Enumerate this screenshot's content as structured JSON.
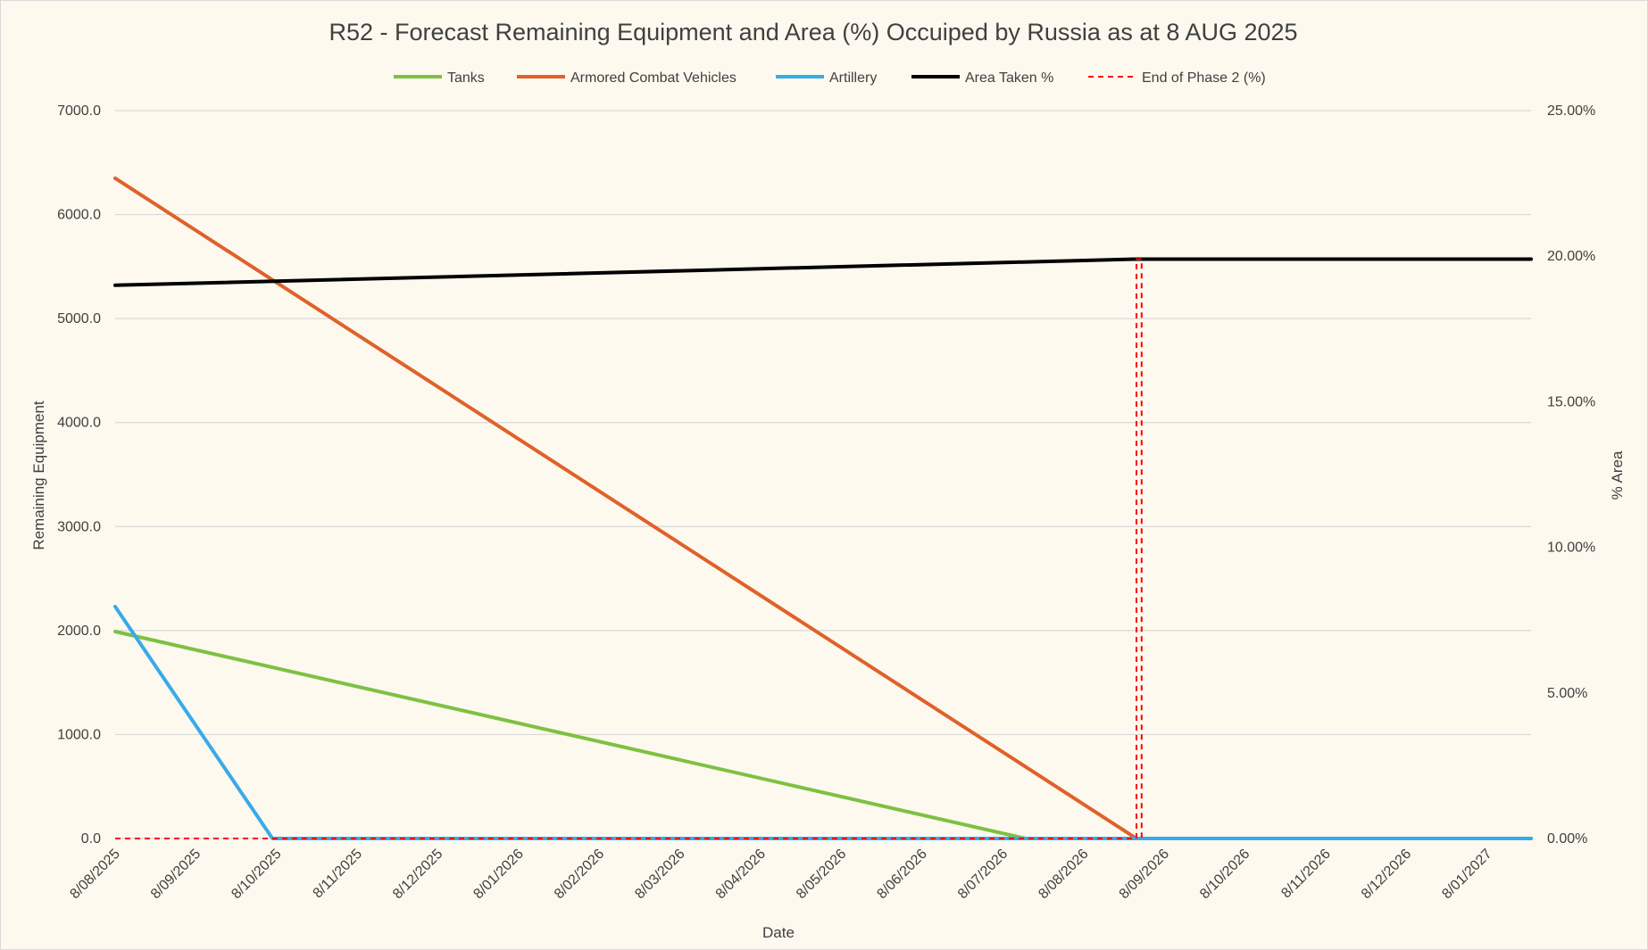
{
  "chart_data": {
    "type": "line",
    "title": "R52 - Forecast Remaining Equipment and Area (%) Occuiped by Russia as at 8 AUG 2025",
    "xlabel": "Date",
    "ylabel": "Remaining Equipment",
    "y2label": "% Area",
    "x_tick_labels": [
      "8/08/2025",
      "8/09/2025",
      "8/10/2025",
      "8/11/2025",
      "8/12/2025",
      "8/01/2026",
      "8/02/2026",
      "8/03/2026",
      "8/04/2026",
      "8/05/2026",
      "8/06/2026",
      "8/07/2026",
      "8/08/2026",
      "8/09/2026",
      "8/10/2026",
      "8/11/2026",
      "8/12/2026",
      "8/01/2027"
    ],
    "x_range": [
      "2025-08-08",
      "2027-02-08"
    ],
    "y_tick_labels": [
      "0.0",
      "1000.0",
      "2000.0",
      "3000.0",
      "4000.0",
      "5000.0",
      "6000.0",
      "7000.0"
    ],
    "ylim": [
      0,
      7000
    ],
    "y2_tick_labels": [
      "0.00%",
      "5.00%",
      "10.00%",
      "15.00%",
      "20.00%",
      "25.00%"
    ],
    "y2lim": [
      0,
      25
    ],
    "grid": true,
    "legend_position": "top",
    "series": [
      {
        "name": "Tanks",
        "axis": "left",
        "color": "#7dc142",
        "dash": "",
        "points": [
          [
            "2025-08-08",
            1990
          ],
          [
            "2026-07-27",
            0
          ],
          [
            "2027-02-08",
            0
          ]
        ]
      },
      {
        "name": "Armored Combat Vehicles",
        "axis": "left",
        "color": "#e0612b",
        "dash": "",
        "points": [
          [
            "2025-08-08",
            6350
          ],
          [
            "2026-09-08",
            0
          ],
          [
            "2027-02-08",
            0
          ]
        ]
      },
      {
        "name": "Artillery",
        "axis": "left",
        "color": "#38aaea",
        "dash": "",
        "points": [
          [
            "2025-08-08",
            2230
          ],
          [
            "2025-10-08",
            0
          ],
          [
            "2027-02-08",
            0
          ]
        ]
      },
      {
        "name": "Area Taken %",
        "axis": "right",
        "color": "#000000",
        "dash": "",
        "points": [
          [
            "2025-08-08",
            19.0
          ],
          [
            "2026-09-08",
            19.9
          ],
          [
            "2027-02-08",
            19.9
          ]
        ]
      },
      {
        "name": "End of Phase 2 (%)",
        "axis": "right",
        "color": "#ff0000",
        "dash": "6,5",
        "points": [
          [
            "2025-08-08",
            0
          ],
          [
            "2026-09-08",
            0
          ],
          [
            "2026-09-08",
            19.9
          ],
          [
            "2026-09-10",
            19.9
          ],
          [
            "2026-09-10",
            0
          ]
        ]
      }
    ]
  }
}
